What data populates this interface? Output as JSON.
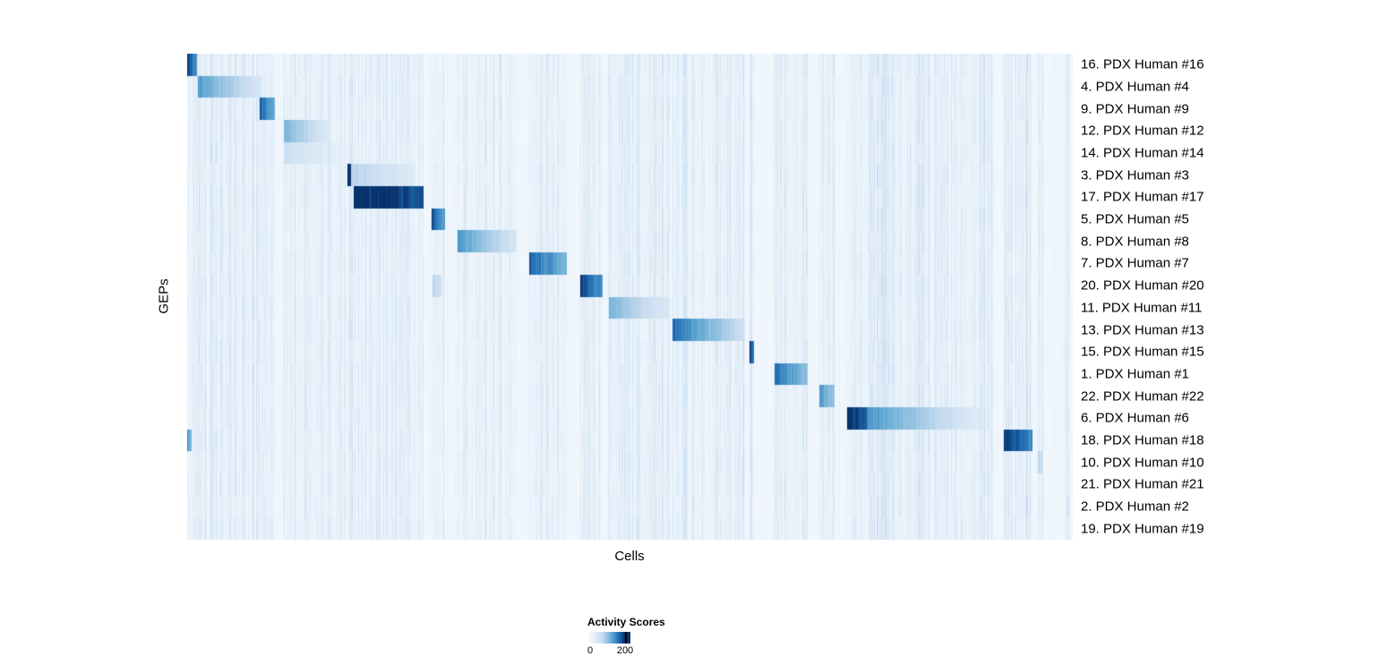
{
  "chart_data": {
    "type": "heatmap",
    "title": "",
    "xlabel": "Cells",
    "ylabel": "GEPs",
    "colormap": "Blues",
    "background_value": 4,
    "value_cap": 200,
    "legend": {
      "title": "Activity Scores",
      "min": 0,
      "max": 200,
      "min_label": "0",
      "max_label": "200",
      "position": "bottom"
    },
    "rows": [
      {
        "label": "16. PDX Human #16",
        "blocks": [
          {
            "start": 0.0,
            "end": 0.011,
            "v0": 185,
            "v1": 120
          }
        ]
      },
      {
        "label": "4. PDX Human #4",
        "blocks": [
          {
            "start": 0.012,
            "end": 0.084,
            "v0": 115,
            "v1": 30
          }
        ]
      },
      {
        "label": "9. PDX Human #9",
        "blocks": [
          {
            "start": 0.081,
            "end": 0.099,
            "v0": 165,
            "v1": 100
          }
        ]
      },
      {
        "label": "12. PDX Human #12",
        "blocks": [
          {
            "start": 0.109,
            "end": 0.161,
            "v0": 95,
            "v1": 25
          }
        ]
      },
      {
        "label": "14. PDX Human #14",
        "blocks": [
          {
            "start": 0.109,
            "end": 0.178,
            "v0": 45,
            "v1": 15
          }
        ]
      },
      {
        "label": "3. PDX Human #3",
        "blocks": [
          {
            "start": 0.18,
            "end": 0.185,
            "v0": 200,
            "v1": 200
          },
          {
            "start": 0.185,
            "end": 0.256,
            "v0": 60,
            "v1": 25
          }
        ]
      },
      {
        "label": "17. PDX Human #17",
        "blocks": [
          {
            "start": 0.188,
            "end": 0.266,
            "v0": 215,
            "v1": 175
          }
        ]
      },
      {
        "label": "5. PDX Human #5",
        "blocks": [
          {
            "start": 0.276,
            "end": 0.291,
            "v0": 175,
            "v1": 110
          }
        ]
      },
      {
        "label": "8. PDX Human #8",
        "blocks": [
          {
            "start": 0.305,
            "end": 0.372,
            "v0": 125,
            "v1": 30
          }
        ]
      },
      {
        "label": "7. PDX Human #7",
        "blocks": [
          {
            "start": 0.386,
            "end": 0.428,
            "v0": 165,
            "v1": 90
          }
        ]
      },
      {
        "label": "20. PDX Human #20",
        "blocks": [
          {
            "start": 0.277,
            "end": 0.287,
            "v0": 60,
            "v1": 40
          },
          {
            "start": 0.443,
            "end": 0.469,
            "v0": 185,
            "v1": 120
          }
        ]
      },
      {
        "label": "11. PDX Human #11",
        "blocks": [
          {
            "start": 0.476,
            "end": 0.544,
            "v0": 95,
            "v1": 25
          }
        ]
      },
      {
        "label": "13. PDX Human #13",
        "blocks": [
          {
            "start": 0.548,
            "end": 0.629,
            "v0": 155,
            "v1": 40
          }
        ]
      },
      {
        "label": "15. PDX Human #15",
        "blocks": [
          {
            "start": 0.634,
            "end": 0.64,
            "v0": 185,
            "v1": 150
          }
        ]
      },
      {
        "label": "1. PDX Human #1",
        "blocks": [
          {
            "start": 0.663,
            "end": 0.7,
            "v0": 155,
            "v1": 80
          }
        ]
      },
      {
        "label": "22. PDX Human #22",
        "blocks": [
          {
            "start": 0.713,
            "end": 0.731,
            "v0": 125,
            "v1": 70
          }
        ]
      },
      {
        "label": "6. PDX Human #6",
        "blocks": [
          {
            "start": 0.745,
            "end": 0.767,
            "v0": 215,
            "v1": 160
          },
          {
            "start": 0.767,
            "end": 0.911,
            "v0": 125,
            "v1": 12
          }
        ]
      },
      {
        "label": "18. PDX Human #18",
        "blocks": [
          {
            "start": 0.0,
            "end": 0.005,
            "v0": 120,
            "v1": 80
          },
          {
            "start": 0.922,
            "end": 0.954,
            "v0": 205,
            "v1": 130
          }
        ]
      },
      {
        "label": "10. PDX Human #10",
        "blocks": [
          {
            "start": 0.96,
            "end": 0.966,
            "v0": 60,
            "v1": 40
          }
        ]
      },
      {
        "label": "21. PDX Human #21",
        "blocks": []
      },
      {
        "label": "2. PDX Human #2",
        "blocks": [
          {
            "start": 0.992,
            "end": 0.996,
            "v0": 30,
            "v1": 20
          }
        ]
      },
      {
        "label": "19. PDX Human #19",
        "blocks": []
      }
    ]
  }
}
